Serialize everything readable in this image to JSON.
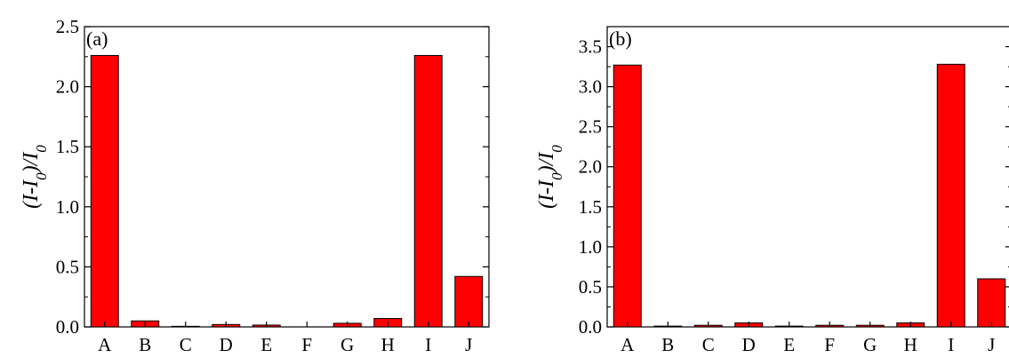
{
  "chart_data": [
    {
      "type": "bar",
      "panel_label": "(a)",
      "categories": [
        "A",
        "B",
        "C",
        "D",
        "E",
        "F",
        "G",
        "H",
        "I",
        "J"
      ],
      "values": [
        2.26,
        0.05,
        0.005,
        0.02,
        0.015,
        0.0,
        0.03,
        0.07,
        2.26,
        0.42
      ],
      "ylabel": "(I-I0)/I0",
      "ylim": [
        0,
        2.5
      ],
      "yticks": [
        0.0,
        0.5,
        1.0,
        1.5,
        2.0,
        2.5
      ],
      "yticklabels": [
        "0.0",
        "0.5",
        "1.0",
        "1.5",
        "2.0",
        "2.5"
      ],
      "grid": false,
      "bar_color": "#ff0000"
    },
    {
      "type": "bar",
      "panel_label": "(b)",
      "categories": [
        "A",
        "B",
        "C",
        "D",
        "E",
        "F",
        "G",
        "H",
        "I",
        "J"
      ],
      "values": [
        3.27,
        0.01,
        0.02,
        0.05,
        0.01,
        0.02,
        0.02,
        0.05,
        3.28,
        0.6
      ],
      "ylabel": "(I-I0)/I0",
      "ylim": [
        0,
        3.75
      ],
      "yticks": [
        0.0,
        0.5,
        1.0,
        1.5,
        2.0,
        2.5,
        3.0,
        3.5
      ],
      "yticklabels": [
        "0.0",
        "0.5",
        "1.0",
        "1.5",
        "2.0",
        "2.5",
        "3.0",
        "3.5"
      ],
      "grid": false,
      "bar_color": "#ff0000"
    }
  ]
}
